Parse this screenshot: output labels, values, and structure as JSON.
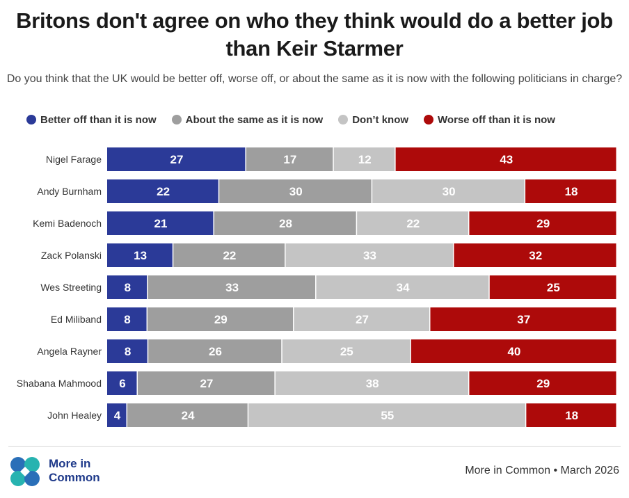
{
  "title": "Britons don't agree on who they think would do a better job than Keir Starmer",
  "subtitle": "Do you think that the UK would be better off, worse off, or about the same as it is now with the following politicians in charge?",
  "legend": [
    {
      "label": "Better off than it is now",
      "color": "#2b3a98"
    },
    {
      "label": "About the same as it is now",
      "color": "#9e9e9e"
    },
    {
      "label": "Don’t know",
      "color": "#c4c4c4"
    },
    {
      "label": "Worse off than it is now",
      "color": "#ad0a0a"
    }
  ],
  "chart_data": {
    "type": "bar",
    "orientation": "horizontal",
    "stacked": true,
    "categories": [
      "Nigel Farage",
      "Andy Burnham",
      "Kemi Badenoch",
      "Zack Polanski",
      "Wes Streeting",
      "Ed Miliband",
      "Angela Rayner",
      "Shabana Mahmood",
      "John Healey"
    ],
    "series": [
      {
        "name": "Better off than it is now",
        "color": "#2b3a98",
        "values": [
          27,
          22,
          21,
          13,
          8,
          8,
          8,
          6,
          4
        ]
      },
      {
        "name": "About the same as it is now",
        "color": "#9e9e9e",
        "values": [
          17,
          30,
          28,
          22,
          33,
          29,
          26,
          27,
          24
        ]
      },
      {
        "name": "Don’t know",
        "color": "#c4c4c4",
        "values": [
          12,
          30,
          22,
          33,
          34,
          27,
          25,
          38,
          55
        ]
      },
      {
        "name": "Worse off than it is now",
        "color": "#ad0a0a",
        "values": [
          43,
          18,
          29,
          32,
          25,
          37,
          40,
          29,
          18
        ]
      }
    ],
    "data_labels": true,
    "legend_position": "top",
    "grid": false
  },
  "logo": {
    "line1": "More in",
    "line2": "Common"
  },
  "source": "More in Common • March 2026",
  "colors": {
    "brand": "#1f3a8a",
    "logo_blue": "#2a6fb8",
    "logo_teal": "#27b3b0"
  }
}
